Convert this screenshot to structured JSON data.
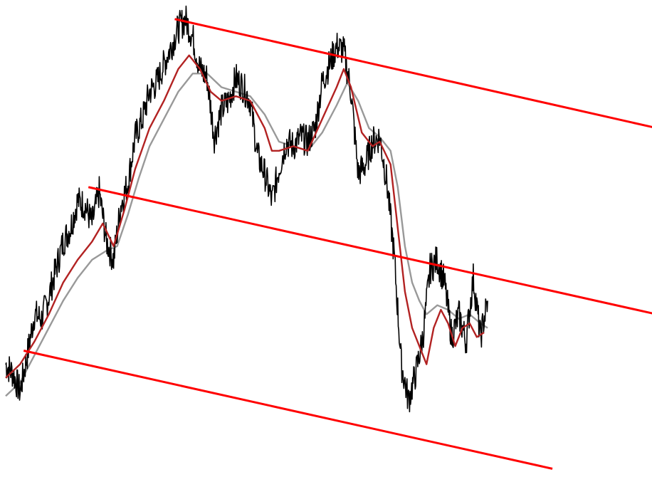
{
  "chart_data": {
    "type": "line",
    "title": "",
    "xlabel": "",
    "ylabel": "",
    "axes_visible": false,
    "grid": false,
    "legend": "none",
    "xlim": [
      0,
      660
    ],
    "ylim": [
      0,
      100
    ],
    "series": [
      {
        "kind": "price",
        "color": "#000000",
        "points": [
          [
            0,
            22
          ],
          [
            10,
            20
          ],
          [
            20,
            16
          ],
          [
            30,
            24
          ],
          [
            40,
            33
          ],
          [
            50,
            32
          ],
          [
            60,
            37
          ],
          [
            70,
            43
          ],
          [
            80,
            49
          ],
          [
            90,
            52
          ],
          [
            100,
            58
          ],
          [
            110,
            57
          ],
          [
            120,
            53
          ],
          [
            130,
            60
          ],
          [
            140,
            49
          ],
          [
            150,
            45
          ],
          [
            160,
            57
          ],
          [
            170,
            62
          ],
          [
            180,
            72
          ],
          [
            190,
            76
          ],
          [
            200,
            82
          ],
          [
            210,
            84
          ],
          [
            220,
            88
          ],
          [
            230,
            92
          ],
          [
            240,
            96
          ],
          [
            250,
            98
          ],
          [
            260,
            94
          ],
          [
            270,
            87
          ],
          [
            280,
            85
          ],
          [
            290,
            72
          ],
          [
            300,
            78
          ],
          [
            310,
            80
          ],
          [
            320,
            85
          ],
          [
            330,
            83
          ],
          [
            340,
            80
          ],
          [
            350,
            68
          ],
          [
            360,
            64
          ],
          [
            370,
            58
          ],
          [
            380,
            65
          ],
          [
            390,
            71
          ],
          [
            400,
            70
          ],
          [
            410,
            72
          ],
          [
            420,
            71
          ],
          [
            430,
            74
          ],
          [
            440,
            84
          ],
          [
            450,
            88
          ],
          [
            460,
            92
          ],
          [
            470,
            91
          ],
          [
            480,
            82
          ],
          [
            490,
            64
          ],
          [
            500,
            66
          ],
          [
            510,
            71
          ],
          [
            520,
            72
          ],
          [
            530,
            62
          ],
          [
            540,
            46
          ],
          [
            550,
            22
          ],
          [
            560,
            14
          ],
          [
            570,
            20
          ],
          [
            580,
            28
          ],
          [
            590,
            43
          ],
          [
            600,
            45
          ],
          [
            610,
            40
          ],
          [
            620,
            28
          ],
          [
            630,
            33
          ],
          [
            640,
            27
          ],
          [
            650,
            41
          ],
          [
            660,
            28
          ],
          [
            670,
            36
          ]
        ]
      },
      {
        "kind": "moving-average-fast",
        "color": "#b22222",
        "points": [
          [
            0,
            19
          ],
          [
            20,
            22
          ],
          [
            40,
            27
          ],
          [
            60,
            33
          ],
          [
            80,
            40
          ],
          [
            100,
            45
          ],
          [
            120,
            49
          ],
          [
            135,
            53
          ],
          [
            150,
            48
          ],
          [
            165,
            56
          ],
          [
            180,
            65
          ],
          [
            200,
            74
          ],
          [
            220,
            80
          ],
          [
            240,
            87
          ],
          [
            255,
            90
          ],
          [
            270,
            87
          ],
          [
            285,
            82
          ],
          [
            300,
            80
          ],
          [
            320,
            81
          ],
          [
            340,
            80
          ],
          [
            360,
            74
          ],
          [
            370,
            69
          ],
          [
            380,
            69
          ],
          [
            400,
            70
          ],
          [
            420,
            69
          ],
          [
            440,
            76
          ],
          [
            460,
            83
          ],
          [
            470,
            87
          ],
          [
            480,
            83
          ],
          [
            495,
            73
          ],
          [
            510,
            70
          ],
          [
            520,
            71
          ],
          [
            535,
            66
          ],
          [
            545,
            52
          ],
          [
            555,
            38
          ],
          [
            565,
            30
          ],
          [
            575,
            26
          ],
          [
            585,
            22
          ],
          [
            595,
            30
          ],
          [
            605,
            34
          ],
          [
            615,
            31
          ],
          [
            625,
            26
          ],
          [
            635,
            30
          ],
          [
            645,
            31
          ],
          [
            655,
            28
          ],
          [
            665,
            29
          ]
        ]
      },
      {
        "kind": "moving-average-slow",
        "color": "#999999",
        "points": [
          [
            0,
            15
          ],
          [
            20,
            18
          ],
          [
            40,
            24
          ],
          [
            60,
            30
          ],
          [
            80,
            36
          ],
          [
            100,
            41
          ],
          [
            120,
            45
          ],
          [
            140,
            47
          ],
          [
            155,
            48
          ],
          [
            170,
            55
          ],
          [
            185,
            63
          ],
          [
            200,
            70
          ],
          [
            220,
            76
          ],
          [
            240,
            82
          ],
          [
            260,
            86
          ],
          [
            280,
            86
          ],
          [
            300,
            83
          ],
          [
            320,
            82
          ],
          [
            340,
            81
          ],
          [
            360,
            77
          ],
          [
            380,
            71
          ],
          [
            400,
            70
          ],
          [
            420,
            69
          ],
          [
            440,
            73
          ],
          [
            460,
            79
          ],
          [
            475,
            84
          ],
          [
            490,
            80
          ],
          [
            505,
            74
          ],
          [
            520,
            72
          ],
          [
            535,
            69
          ],
          [
            545,
            61
          ],
          [
            555,
            48
          ],
          [
            565,
            40
          ],
          [
            575,
            36
          ],
          [
            585,
            33
          ],
          [
            600,
            35
          ],
          [
            615,
            34
          ],
          [
            630,
            32
          ],
          [
            645,
            33
          ],
          [
            660,
            31
          ],
          [
            670,
            30
          ]
        ]
      }
    ],
    "trend_lines": [
      {
        "kind": "channel-upper",
        "color": "#ff0000",
        "from": [
          235,
          98
        ],
        "to": [
          905,
          74
        ]
      },
      {
        "kind": "channel-middle",
        "color": "#ff0000",
        "from": [
          115,
          61
        ],
        "to": [
          905,
          33
        ]
      },
      {
        "kind": "channel-lower",
        "color": "#ff0000",
        "from": [
          25,
          25
        ],
        "to": [
          760,
          -1
        ]
      }
    ]
  }
}
